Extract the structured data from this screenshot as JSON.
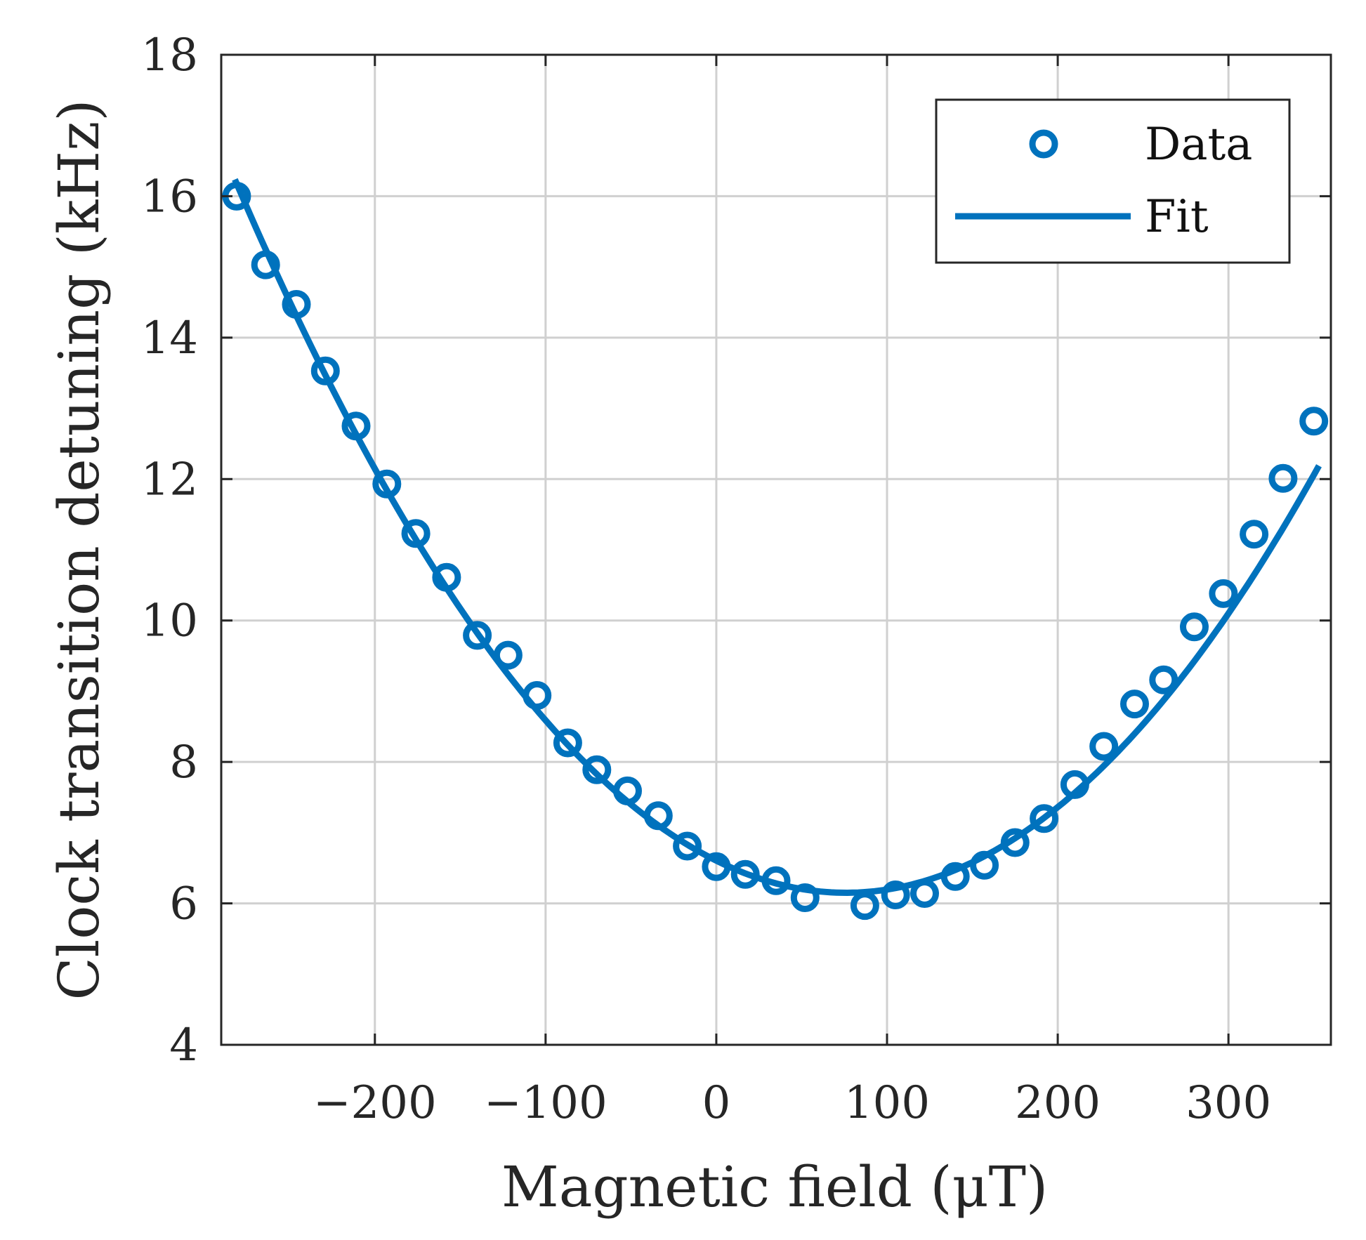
{
  "chart_data": {
    "type": "scatter",
    "title": "",
    "xlabel": "Magnetic field (μT)",
    "ylabel": "Clock transition detuning (kHz)",
    "xlim": [
      -290,
      360
    ],
    "ylim": [
      4,
      18
    ],
    "x_ticks": [
      -200,
      -100,
      0,
      100,
      200,
      300
    ],
    "x_tick_labels": [
      "−200",
      "−100",
      "0",
      "100",
      "200",
      "300"
    ],
    "y_ticks": [
      4,
      6,
      8,
      10,
      12,
      14,
      16,
      18
    ],
    "y_tick_labels": [
      "4",
      "6",
      "8",
      "10",
      "12",
      "14",
      "16",
      "18"
    ],
    "grid": true,
    "legend_position": "top-right",
    "color": "#0072BD",
    "series": [
      {
        "name": "Data",
        "kind": "markers",
        "x": [
          -281,
          -264,
          -246,
          -229,
          -211,
          -193,
          -176,
          -158,
          -140,
          -122,
          -105,
          -87,
          -70,
          -52,
          -34,
          -17,
          0,
          17,
          35,
          52,
          87,
          105,
          122,
          140,
          157,
          175,
          192,
          210,
          227,
          245,
          262,
          280,
          297,
          315,
          332,
          350
        ],
        "y": [
          16.0,
          15.03,
          14.47,
          13.53,
          12.75,
          11.93,
          11.23,
          10.61,
          9.79,
          9.51,
          8.94,
          8.27,
          7.89,
          7.59,
          7.24,
          6.81,
          6.52,
          6.41,
          6.32,
          6.08,
          5.97,
          6.12,
          6.14,
          6.38,
          6.54,
          6.86,
          7.2,
          7.68,
          8.22,
          8.82,
          9.16,
          9.91,
          10.38,
          11.22,
          12.01,
          12.82
        ]
      },
      {
        "name": "Fit",
        "kind": "line",
        "model": "quadratic",
        "vertex_x": 76,
        "vertex_y": 6.15,
        "curvature": 7.87e-05,
        "x_range": [
          -282,
          353
        ]
      }
    ]
  }
}
